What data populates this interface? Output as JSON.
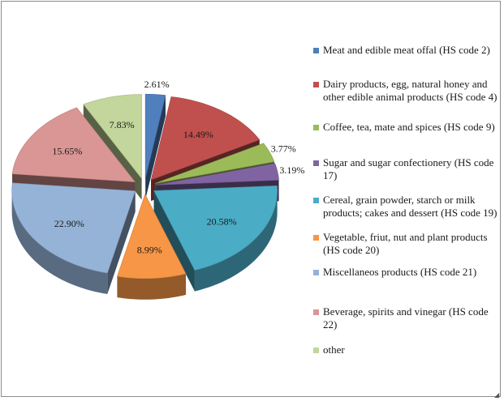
{
  "chart_data": {
    "type": "pie",
    "title": "",
    "slices": [
      {
        "label": "Meat and edible meat offal (HS code 2)",
        "value": 2.61,
        "display": "2.61%",
        "color": "#4f7fbd"
      },
      {
        "label": "Dairy products, egg, natural honey and other edible animal products (HS code 4)",
        "value": 14.49,
        "display": "14.49%",
        "color": "#c0504d"
      },
      {
        "label": "Coffee, tea, mate and spices (HS code 9)",
        "value": 3.77,
        "display": "3.77%",
        "color": "#9bbb59"
      },
      {
        "label": "Sugar and sugar confectionery (HS code 17)",
        "value": 3.19,
        "display": "3.19%",
        "color": "#8064a2"
      },
      {
        "label": "Cereal, grain powder, starch or milk products; cakes and dessert (HS code 19)",
        "value": 20.58,
        "display": "20.58%",
        "color": "#4bacc6"
      },
      {
        "label": "Vegetable, friut, nut and plant products (HS code 20)",
        "value": 8.99,
        "display": "8.99%",
        "color": "#f79646"
      },
      {
        "label": "Miscellaneos products (HS code 21)",
        "value": 22.9,
        "display": "22.90%",
        "color": "#95b3d7"
      },
      {
        "label": "Beverage, spirits and vinegar (HS code 22)",
        "value": 15.65,
        "display": "15.65%",
        "color": "#d99694"
      },
      {
        "label": "other",
        "value": 7.83,
        "display": "7.83%",
        "color": "#c3d69b"
      }
    ],
    "legend_position": "right",
    "style": "exploded-3d"
  }
}
